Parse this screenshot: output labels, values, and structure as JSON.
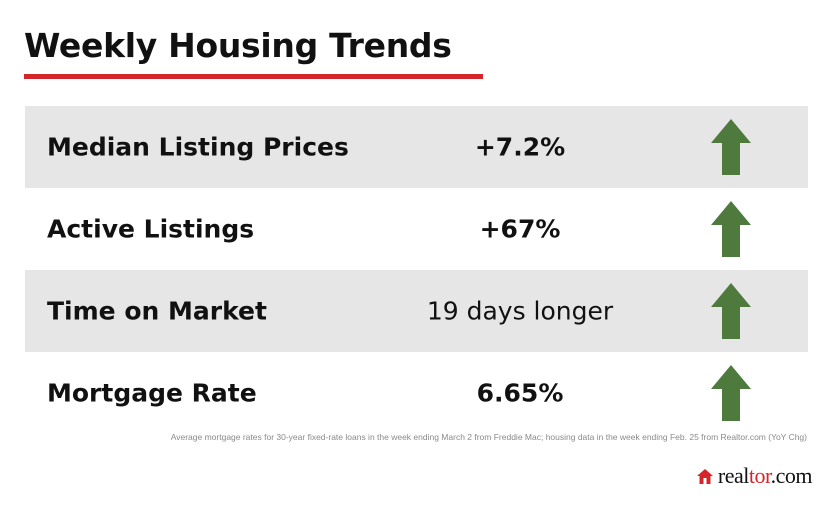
{
  "title": "Weekly Housing Trends",
  "colors": {
    "title_rule": "#d4252a",
    "row_shade": "#e6e6e6",
    "arrow_up": "#4e7a3e",
    "brand_accent": "#d4252a"
  },
  "rows": [
    {
      "label": "Median Listing Prices",
      "value": "+7.2%",
      "trend_icon": "arrow-up-icon",
      "trend": "up"
    },
    {
      "label": "Active Listings",
      "value": "+67%",
      "trend_icon": "arrow-up-icon",
      "trend": "up"
    },
    {
      "label": "Time on Market",
      "value": "19 days longer",
      "trend_icon": "arrow-up-icon",
      "trend": "up"
    },
    {
      "label": "Mortgage Rate",
      "value": "6.65%",
      "trend_icon": "arrow-up-icon",
      "trend": "up"
    }
  ],
  "footnote": "Average mortgage rates for 30-year fixed-rate loans in the week ending March 2 from Freddie Mac; housing data in the week ending Feb. 25 from Realtor.com (YoY Chg)",
  "brand": {
    "prefix": "real",
    "accent": "tor",
    "suffix": ".com",
    "icon": "house-icon"
  }
}
